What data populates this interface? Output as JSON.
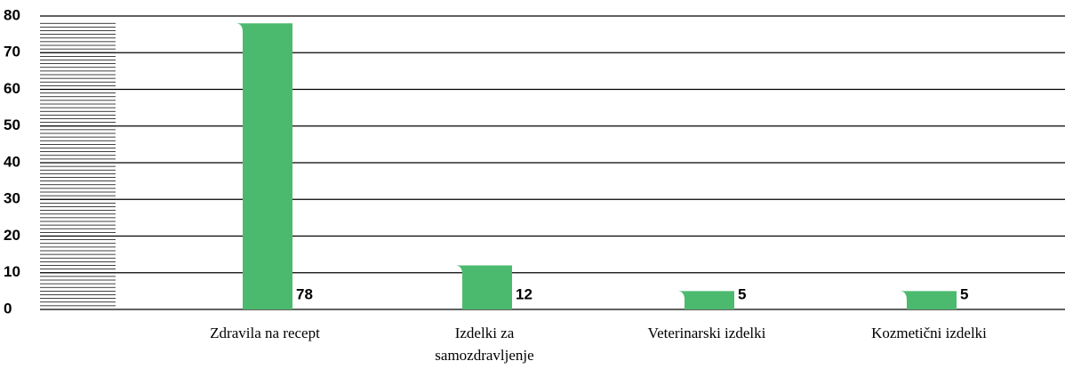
{
  "chart_data": {
    "type": "bar",
    "categories": [
      "Zdravila na recept",
      "Izdelki za samozdravljenje",
      "Veterinarski izdelki",
      "Kozmetični izdelki"
    ],
    "values": [
      78,
      12,
      5,
      5
    ],
    "color": "#4cba6e",
    "ylim": [
      0,
      80
    ],
    "yticks": [
      0,
      10,
      20,
      30,
      40,
      50,
      60,
      70,
      80
    ],
    "minor_ticks": 1,
    "grid": true
  }
}
